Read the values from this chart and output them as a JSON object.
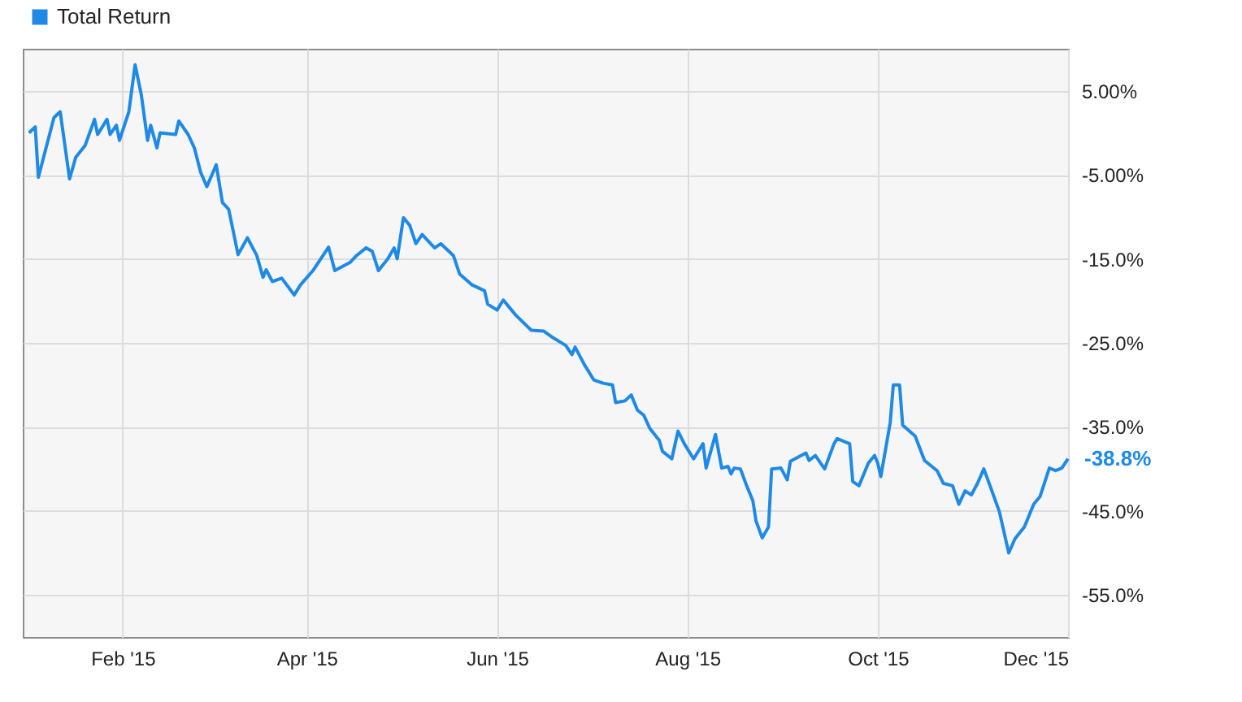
{
  "chart_data": {
    "type": "line",
    "x": [
      "2015-01-02",
      "2015-01-04",
      "2015-01-05",
      "2015-01-10",
      "2015-01-12",
      "2015-01-15",
      "2015-01-17",
      "2015-01-20",
      "2015-01-23",
      "2015-01-24",
      "2015-01-27",
      "2015-01-28",
      "2015-01-30",
      "2015-01-31",
      "2015-02-03",
      "2015-02-05",
      "2015-02-07",
      "2015-02-09",
      "2015-02-10",
      "2015-02-12",
      "2015-02-13",
      "2015-02-18",
      "2015-02-19",
      "2015-02-22",
      "2015-02-24",
      "2015-02-26",
      "2015-02-28",
      "2015-03-03",
      "2015-03-05",
      "2015-03-07",
      "2015-03-10",
      "2015-03-13",
      "2015-03-16",
      "2015-03-18",
      "2015-03-19",
      "2015-03-21",
      "2015-03-24",
      "2015-03-28",
      "2015-03-30",
      "2015-04-03",
      "2015-04-08",
      "2015-04-10",
      "2015-04-15",
      "2015-04-17",
      "2015-04-20",
      "2015-04-22",
      "2015-04-24",
      "2015-04-27",
      "2015-04-29",
      "2015-04-30",
      "2015-05-02",
      "2015-05-04",
      "2015-05-06",
      "2015-05-08",
      "2015-05-12",
      "2015-05-14",
      "2015-05-18",
      "2015-05-20",
      "2015-05-24",
      "2015-05-28",
      "2015-05-29",
      "2015-06-01",
      "2015-06-03",
      "2015-06-07",
      "2015-06-12",
      "2015-06-16",
      "2015-06-19",
      "2015-06-23",
      "2015-06-25",
      "2015-06-26",
      "2015-06-29",
      "2015-07-02",
      "2015-07-05",
      "2015-07-08",
      "2015-07-09",
      "2015-07-12",
      "2015-07-14",
      "2015-07-16",
      "2015-07-18",
      "2015-07-20",
      "2015-07-23",
      "2015-07-24",
      "2015-07-27",
      "2015-07-29",
      "2015-07-31",
      "2015-08-03",
      "2015-08-06",
      "2015-08-07",
      "2015-08-10",
      "2015-08-12",
      "2015-08-14",
      "2015-08-15",
      "2015-08-16",
      "2015-08-18",
      "2015-08-20",
      "2015-08-22",
      "2015-08-23",
      "2015-08-25",
      "2015-08-27",
      "2015-08-28",
      "2015-08-31",
      "2015-09-02",
      "2015-09-03",
      "2015-09-08",
      "2015-09-09",
      "2015-09-11",
      "2015-09-14",
      "2015-09-17",
      "2015-09-18",
      "2015-09-22",
      "2015-09-23",
      "2015-09-25",
      "2015-09-28",
      "2015-09-30",
      "2015-10-01",
      "2015-10-02",
      "2015-10-05",
      "2015-10-06",
      "2015-10-08",
      "2015-10-09",
      "2015-10-13",
      "2015-10-16",
      "2015-10-20",
      "2015-10-22",
      "2015-10-25",
      "2015-10-27",
      "2015-10-29",
      "2015-10-31",
      "2015-11-02",
      "2015-11-04",
      "2015-11-06",
      "2015-11-09",
      "2015-11-12",
      "2015-11-14",
      "2015-11-17",
      "2015-11-20",
      "2015-11-22",
      "2015-11-25",
      "2015-11-27",
      "2015-11-29",
      "2015-12-01"
    ],
    "series": [
      {
        "name": "Total Return",
        "color": "#1f8ae6",
        "values": [
          0.0,
          0.7,
          -5.3,
          1.8,
          2.5,
          -5.5,
          -2.9,
          -1.5,
          1.6,
          -0.2,
          1.6,
          -0.2,
          0.9,
          -0.9,
          2.5,
          8.1,
          4.5,
          -0.9,
          0.9,
          -1.8,
          0.0,
          -0.2,
          1.4,
          -0.2,
          -1.8,
          -4.7,
          -6.4,
          -3.8,
          -8.3,
          -9.1,
          -14.5,
          -12.5,
          -14.6,
          -17.2,
          -16.3,
          -17.7,
          -17.3,
          -19.3,
          -18.1,
          -16.4,
          -13.6,
          -16.4,
          -15.4,
          -14.6,
          -13.7,
          -14.1,
          -16.4,
          -15.0,
          -13.7,
          -15.0,
          -10.1,
          -11.0,
          -13.2,
          -12.1,
          -13.7,
          -13.2,
          -14.6,
          -16.8,
          -18.1,
          -18.8,
          -20.4,
          -21.1,
          -19.9,
          -21.7,
          -23.5,
          -23.6,
          -24.4,
          -25.3,
          -26.4,
          -25.5,
          -27.6,
          -29.4,
          -29.8,
          -30.0,
          -32.1,
          -31.9,
          -31.2,
          -33.0,
          -33.6,
          -35.2,
          -36.6,
          -37.9,
          -38.8,
          -35.5,
          -37.0,
          -38.8,
          -37.0,
          -39.9,
          -35.9,
          -39.9,
          -39.7,
          -40.6,
          -39.9,
          -40.0,
          -42.0,
          -43.8,
          -46.2,
          -48.2,
          -46.9,
          -40.0,
          -39.9,
          -41.3,
          -39.1,
          -38.1,
          -39.0,
          -38.4,
          -40.0,
          -37.0,
          -36.4,
          -37.0,
          -41.5,
          -42.0,
          -39.3,
          -38.4,
          -39.3,
          -40.9,
          -34.5,
          -30.0,
          -30.0,
          -34.8,
          -36.1,
          -39.0,
          -40.2,
          -41.7,
          -42.0,
          -44.2,
          -42.6,
          -43.1,
          -41.7,
          -40.0,
          -42.0,
          -45.1,
          -50.0,
          -48.3,
          -46.9,
          -44.2,
          -43.3,
          -39.9,
          -40.2,
          -39.9,
          -38.8
        ]
      }
    ],
    "xlim": [
      "2014-12-31",
      "2015-12-01"
    ],
    "xticks": [
      {
        "value": "2015-02-01",
        "label": "Feb '15"
      },
      {
        "value": "2015-04-01",
        "label": "Apr '15"
      },
      {
        "value": "2015-06-01",
        "label": "Jun '15"
      },
      {
        "value": "2015-08-01",
        "label": "Aug '15"
      },
      {
        "value": "2015-10-01",
        "label": "Oct '15"
      },
      {
        "value": "2015-12-01",
        "label": "Dec '15"
      }
    ],
    "ylim": [
      -60,
      10
    ],
    "yticks": [
      {
        "value": 5,
        "label": "5.00%"
      },
      {
        "value": -5,
        "label": "-5.00%"
      },
      {
        "value": -15,
        "label": "-15.0%"
      },
      {
        "value": -25,
        "label": "-25.0%"
      },
      {
        "value": -35,
        "label": "-35.0%"
      },
      {
        "value": -45,
        "label": "-45.0%"
      },
      {
        "value": -55,
        "label": "-55.0%"
      }
    ],
    "annotations": [
      {
        "text": "-38.8%",
        "x": "2015-12-01",
        "y": -38.8
      }
    ],
    "grid": true,
    "legend": "top left"
  }
}
